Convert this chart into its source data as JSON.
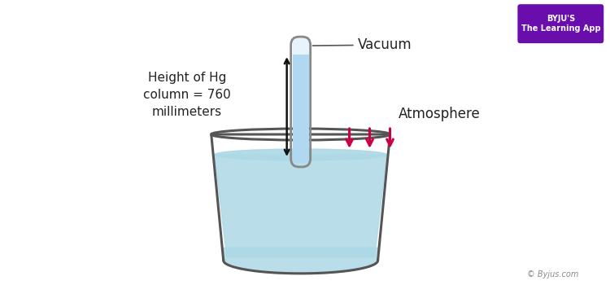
{
  "bg_color": "#ffffff",
  "beaker_color": "#add8e6",
  "beaker_edge_color": "#555555",
  "tube_fill_color": "#b0d8f0",
  "tube_edge_color": "#888888",
  "vacuum_fill_color": "#e8f4fb",
  "arrow_color": "#111111",
  "atm_arrow_color": "#cc0044",
  "label_vacuum": "Vacuum",
  "label_atmosphere": "Atmosphere",
  "label_height": "Height of Hg\ncolumn = 760\nmillimeters",
  "copyright_text": "© Byjus.com",
  "byju_text": "BYJU'S\nThe Learning App",
  "byju_box_color": "#6a0dad",
  "byju_text_color": "#ffffff"
}
